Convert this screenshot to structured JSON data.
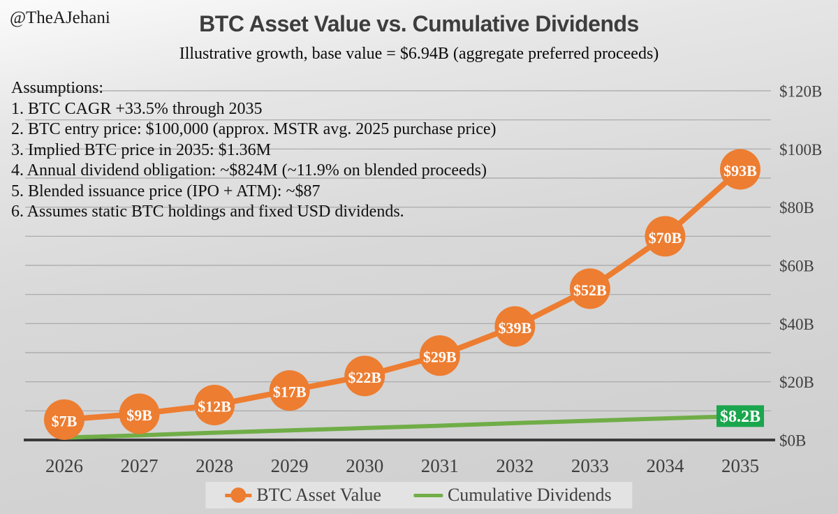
{
  "watermark": "@TheAJehani",
  "header": {
    "title": "BTC Asset Value vs. Cumulative Dividends",
    "subtitle": "Illustrative growth, base value = $6.94B (aggregate preferred proceeds)"
  },
  "assumptions": {
    "heading": "Assumptions:",
    "items": [
      "1. BTC CAGR +33.5% through 2035",
      "2. BTC entry price: $100,000 (approx. MSTR avg. 2025 purchase price)",
      "3. Implied BTC price in 2035: $1.36M",
      "4. Annual dividend obligation: ~$824M (~11.9% on blended proceeds)",
      "5. Blended issuance price (IPO + ATM): ~$87",
      "6. Assumes static BTC holdings and fixed USD dividends."
    ]
  },
  "chart_data": {
    "type": "line",
    "title": "BTC Asset Value vs. Cumulative Dividends",
    "subtitle": "Illustrative growth, base value = $6.94B (aggregate preferred proceeds)",
    "x": [
      "2026",
      "2027",
      "2028",
      "2029",
      "2030",
      "2031",
      "2032",
      "2033",
      "2034",
      "2035"
    ],
    "series": [
      {
        "name": "BTC Asset Value",
        "color": "#ED7D31",
        "marker": "circle",
        "values": [
          7,
          9,
          12,
          17,
          22,
          29,
          39,
          52,
          70,
          93
        ],
        "point_labels": [
          "$7B",
          "$9B",
          "$12B",
          "$17B",
          "$22B",
          "$29B",
          "$39B",
          "$52B",
          "$70B",
          "$93B"
        ]
      },
      {
        "name": "Cumulative Dividends",
        "color": "#70AD47",
        "marker": "none",
        "values": [
          0.8,
          1.6,
          2.5,
          3.3,
          4.1,
          4.9,
          5.8,
          6.6,
          7.4,
          8.2
        ],
        "end_label": "$8.2B",
        "end_label_bg": "#1AA64D"
      }
    ],
    "xlabel": "",
    "ylabel": "",
    "ylim": [
      0,
      120
    ],
    "grid": true,
    "grid_step": 10,
    "y_tick_values": [
      0,
      20,
      40,
      60,
      80,
      100,
      120
    ],
    "y_tick_labels": [
      "$0B",
      "$20B",
      "$40B",
      "$60B",
      "$80B",
      "$100B",
      "$120B"
    ],
    "legend_position": "bottom"
  },
  "legend": {
    "items": [
      {
        "label": "BTC Asset Value",
        "color": "#ED7D31"
      },
      {
        "label": "Cumulative Dividends",
        "color": "#70AD47"
      }
    ]
  },
  "colors": {
    "btc": "#ED7D31",
    "dividends": "#70AD47",
    "dividend_label_bg": "#1AA64D",
    "grid": "#A6A6A6",
    "axis": "#3A3A3A",
    "text": "#3F3F3F"
  }
}
